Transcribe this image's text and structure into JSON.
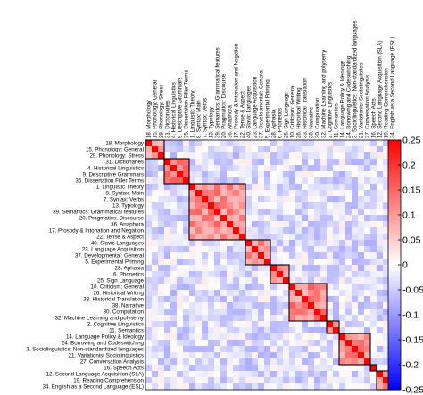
{
  "chart_data": {
    "type": "heatmap",
    "title": "",
    "labels": [
      "18. Morphology",
      "15. Phonology: General",
      "29. Phonology: Stress",
      "31. Dictionaries",
      "4. Historical Linguistics",
      "9. Descriptive Grammars",
      "35. Dissertation Filler Terms",
      "1. Linguistic Theory",
      "8. Syntax: Main",
      "7. Syntax: Verbs",
      "13. Typology",
      "39. Semantics: Grammatical features",
      "20. Pragmatics: Discourse",
      "36. Anaphora",
      "17. Prosody & Intonation and Negation",
      "22. Tense & Aspect",
      "40. Slavic Languages",
      "23. Language Acquisition",
      "37. Developmental: General",
      "5. Experimental Priming",
      "28. Aphasia",
      "6. Phonetics",
      "25. Sign Language",
      "10. Criticism: General",
      "26. Historical Writing",
      "33. Historical Translation",
      "38. Narrative",
      "30. Computation",
      "32. Machine Learning and polysemy",
      "2. Cognitive Linguistics",
      "11. Semantics",
      "14. Language Policy & Ideology",
      "24. Borrowing and Codeswitching",
      "3. Sociolinguistics: Non-standardized languages",
      "21. Variationist Sociolinguistics",
      "27. Conversation Analysis",
      "16. Speech Acts",
      "12. Second Language Acquisition (SLA)",
      "19. Reading Comprehension",
      "34. English as a Second Language (ESL)"
    ],
    "clusters": [
      [
        0,
        2
      ],
      [
        3,
        6
      ],
      [
        7,
        15
      ],
      [
        16,
        19
      ],
      [
        20,
        22
      ],
      [
        23,
        28
      ],
      [
        29,
        30
      ],
      [
        31,
        35
      ],
      [
        36,
        36
      ],
      [
        37,
        39
      ]
    ],
    "colorbar": {
      "min": -0.25,
      "max": 0.25,
      "ticks": [
        "0.25",
        "0.2",
        "0.15",
        "0.1",
        "0.05",
        "0",
        "-0.05",
        "-0.1",
        "-0.15",
        "-0.2",
        "-0.25"
      ],
      "colormap": [
        "#0000ff",
        "#ffffff",
        "#ff0000"
      ]
    },
    "diagonal_value": 0.25,
    "within_cluster_mean": 0.1,
    "background_range": [
      -0.08,
      0.02
    ]
  }
}
